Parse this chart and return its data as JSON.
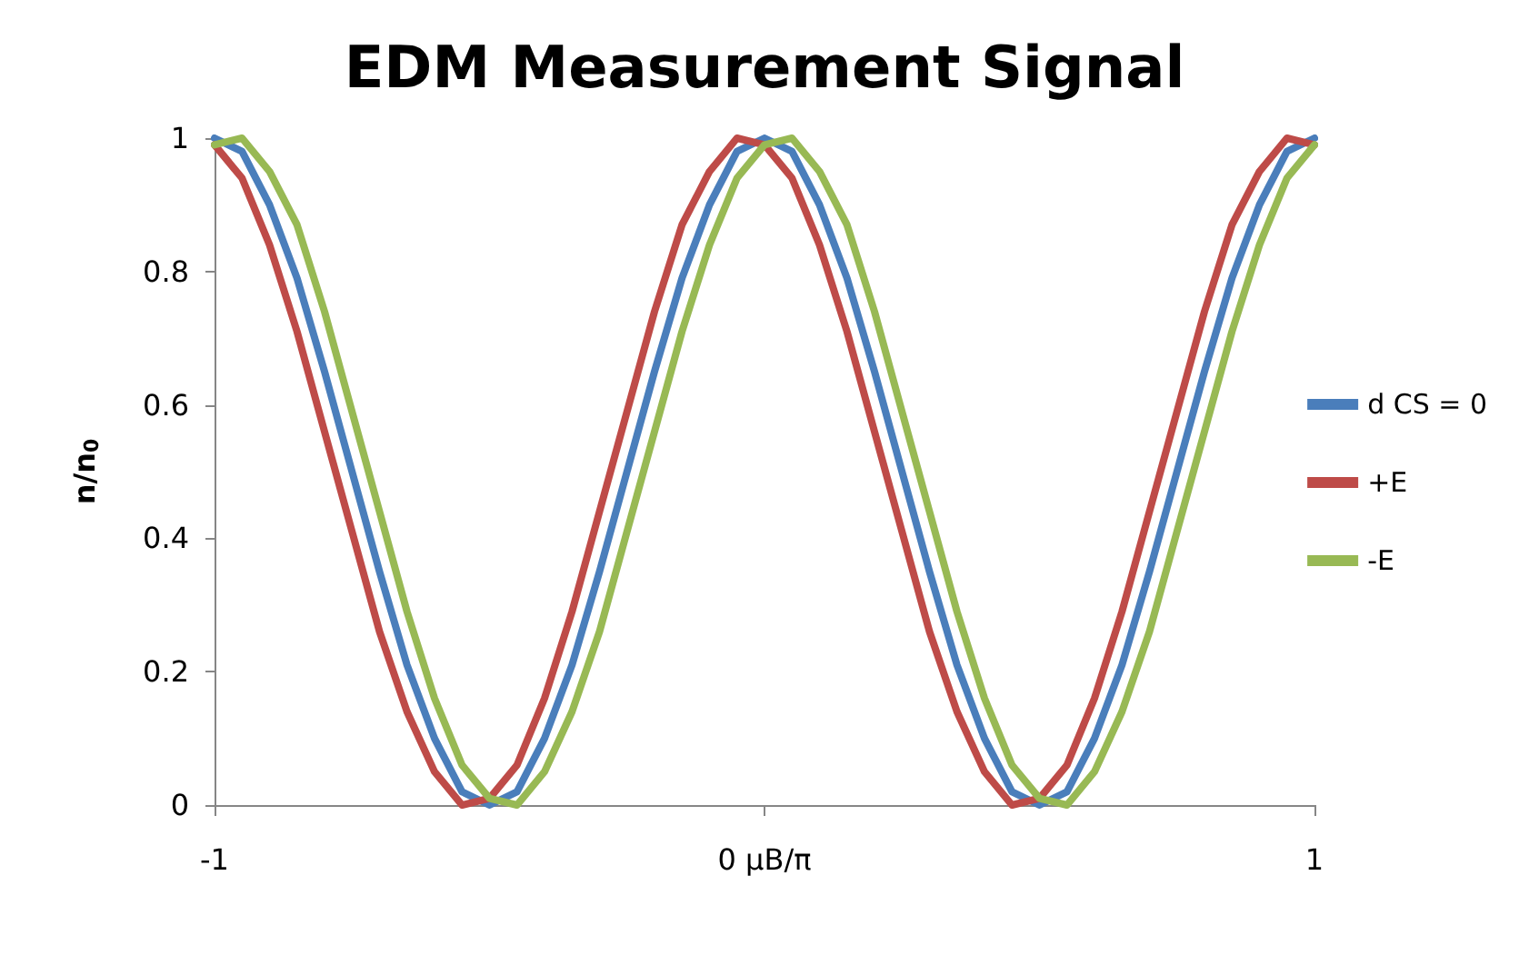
{
  "chart_data": {
    "type": "line",
    "title": "EDM Measurement Signal",
    "ylabel": "n/n$_{0}$",
    "x": [
      -1,
      -0.95,
      -0.9,
      -0.85,
      -0.8,
      -0.75,
      -0.7,
      -0.65,
      -0.6,
      -0.55,
      -0.5,
      -0.45,
      -0.4,
      -0.35,
      -0.3,
      -0.25,
      -0.2,
      -0.15,
      -0.1,
      -0.05,
      0,
      0.05,
      0.1,
      0.15,
      0.2,
      0.25,
      0.3,
      0.35,
      0.4,
      0.45,
      0.5,
      0.55,
      0.6,
      0.65,
      0.7,
      0.75,
      0.8,
      0.85,
      0.9,
      0.95,
      1
    ],
    "series": [
      {
        "name": "d CS = 0",
        "color": "#4a7ebb",
        "values": [
          1,
          0.98,
          0.9,
          0.79,
          0.65,
          0.5,
          0.35,
          0.21,
          0.1,
          0.02,
          0,
          0.02,
          0.1,
          0.21,
          0.35,
          0.5,
          0.65,
          0.79,
          0.9,
          0.98,
          1,
          0.98,
          0.9,
          0.79,
          0.65,
          0.5,
          0.35,
          0.21,
          0.1,
          0.02,
          0,
          0.02,
          0.1,
          0.21,
          0.35,
          0.5,
          0.65,
          0.79,
          0.9,
          0.98,
          1
        ]
      },
      {
        "name": "+E",
        "color": "#be4b48",
        "values": [
          0.99,
          0.94,
          0.84,
          0.71,
          0.56,
          0.41,
          0.26,
          0.14,
          0.05,
          0,
          0.01,
          0.06,
          0.16,
          0.29,
          0.44,
          0.59,
          0.74,
          0.87,
          0.95,
          1,
          0.99,
          0.94,
          0.84,
          0.71,
          0.56,
          0.41,
          0.26,
          0.14,
          0.05,
          0,
          0.01,
          0.06,
          0.16,
          0.29,
          0.44,
          0.59,
          0.74,
          0.87,
          0.95,
          1,
          0.99
        ]
      },
      {
        "name": "-E",
        "color": "#98b954",
        "values": [
          0.99,
          1,
          0.95,
          0.87,
          0.74,
          0.59,
          0.44,
          0.29,
          0.16,
          0.06,
          0.01,
          0,
          0.05,
          0.14,
          0.26,
          0.41,
          0.56,
          0.71,
          0.84,
          0.94,
          0.99,
          1,
          0.95,
          0.87,
          0.74,
          0.59,
          0.44,
          0.29,
          0.16,
          0.06,
          0.01,
          0,
          0.05,
          0.14,
          0.26,
          0.41,
          0.56,
          0.71,
          0.84,
          0.94,
          0.99
        ]
      }
    ],
    "xlim": [
      -1,
      1
    ],
    "xticks": [
      -1,
      {
        "value": 0,
        "label": "0 μB/π"
      },
      1
    ],
    "ylim": [
      0,
      1
    ],
    "yticks": [
      0,
      0.2,
      0.4,
      0.6,
      0.8,
      1
    ],
    "grid": false,
    "legend": "right",
    "marker": "none",
    "line_style": "solid"
  }
}
